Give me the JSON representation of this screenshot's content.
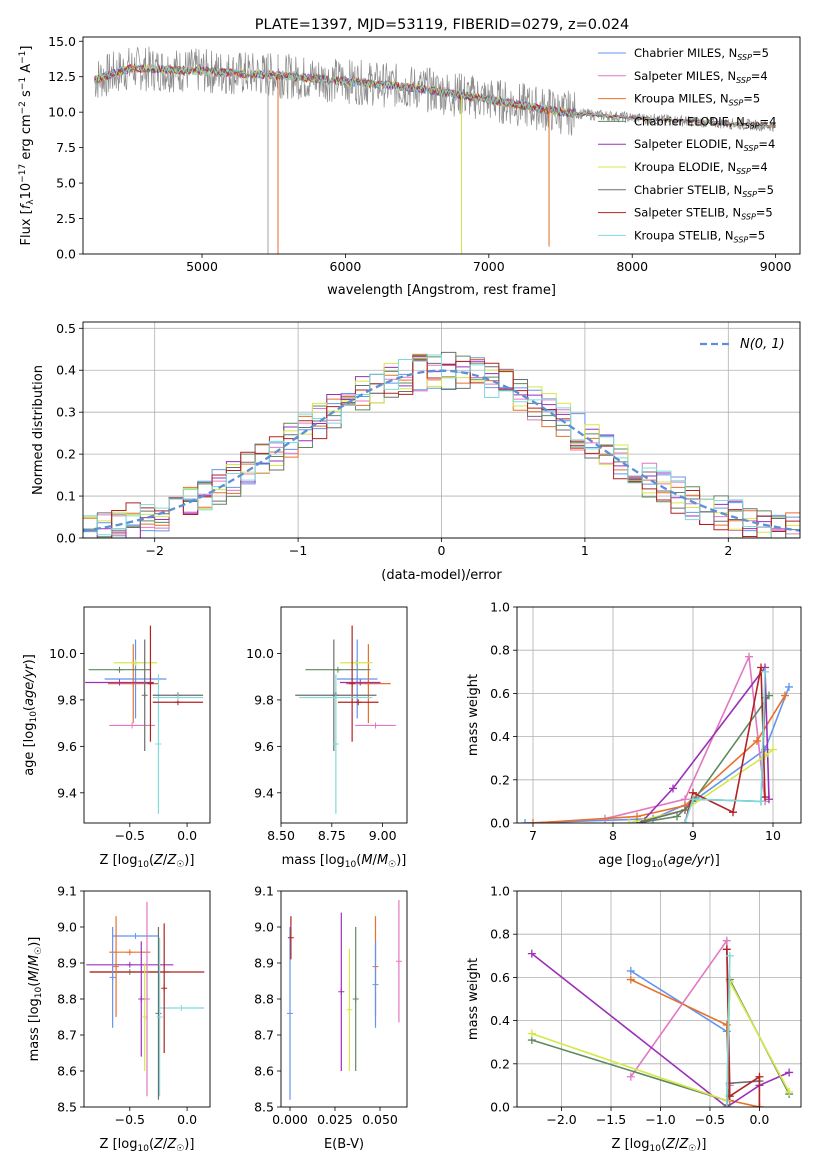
{
  "figure_title": "PLATE=1397, MJD=53119, FIBERID=0279, z=0.024",
  "colors": {
    "C_MILES": "#6495ed",
    "S_MILES": "#e377c2",
    "K_MILES": "#e8702a",
    "C_ELODIE": "#5f8a5f",
    "S_ELODIE": "#9b30b8",
    "K_ELODIE": "#d4e84a",
    "C_STELIB": "#6e6e6e",
    "S_STELIB": "#b22222",
    "K_STELIB": "#7fdbdb",
    "data": "#8c8c8c",
    "grid": "#b0b0b0",
    "gauss": "#5b8fd6"
  },
  "chart_data": [
    {
      "id": "spectrum",
      "type": "line",
      "title": "PLATE=1397, MJD=53119, FIBERID=0279, z=0.024",
      "xlabel": "wavelength [Angstrom, rest frame]",
      "ylabel": "Flux [f_λ 10^-17 erg cm^-2 s^-1 A^-1]",
      "xlim": [
        4170,
        9170
      ],
      "ylim": [
        0,
        15.3
      ],
      "xticks": [
        5000,
        6000,
        7000,
        8000,
        9000
      ],
      "yticks": [
        0.0,
        2.5,
        5.0,
        7.5,
        10.0,
        12.5,
        15.0
      ],
      "grid": false,
      "legend_position": "upper-right",
      "legend": [
        {
          "key": "C_MILES",
          "label": "Chabrier MILES, N",
          "sub": "SSP",
          "n": "=5"
        },
        {
          "key": "S_MILES",
          "label": "Salpeter MILES, N",
          "sub": "SSP",
          "n": "=4"
        },
        {
          "key": "K_MILES",
          "label": "Kroupa MILES, N",
          "sub": "SSP",
          "n": "=5"
        },
        {
          "key": "C_ELODIE",
          "label": "Chabrier ELODIE, N",
          "sub": "SSP",
          "n": "=4"
        },
        {
          "key": "S_ELODIE",
          "label": "Salpeter ELODIE, N",
          "sub": "SSP",
          "n": "=4"
        },
        {
          "key": "K_ELODIE",
          "label": "Kroupa ELODIE, N",
          "sub": "SSP",
          "n": "=4"
        },
        {
          "key": "C_STELIB",
          "label": "Chabrier STELIB, N",
          "sub": "SSP",
          "n": "=5"
        },
        {
          "key": "S_STELIB",
          "label": "Salpeter STELIB, N",
          "sub": "SSP",
          "n": "=5"
        },
        {
          "key": "K_STELIB",
          "label": "Kroupa STELIB, N",
          "sub": "SSP",
          "n": "=5"
        }
      ],
      "continuum": [
        [
          4250,
          12.3
        ],
        [
          4500,
          13.1
        ],
        [
          5000,
          12.9
        ],
        [
          5500,
          12.6
        ],
        [
          6000,
          12.2
        ],
        [
          6500,
          11.7
        ],
        [
          7000,
          10.9
        ],
        [
          7500,
          10.0
        ],
        [
          8000,
          9.6
        ],
        [
          8500,
          9.3
        ],
        [
          9000,
          9.0
        ]
      ],
      "dips": [
        [
          5460,
          0.0
        ],
        [
          5530,
          0.0
        ],
        [
          6810,
          0.0
        ],
        [
          7420,
          0.5
        ]
      ]
    },
    {
      "id": "residuals",
      "type": "histogram",
      "xlabel": "(data-model)/error",
      "ylabel": "Normed distribution",
      "xlim": [
        -2.5,
        2.5
      ],
      "ylim": [
        0,
        0.515
      ],
      "xticks": [
        -2,
        -1,
        0,
        1,
        2
      ],
      "yticks": [
        0.0,
        0.1,
        0.2,
        0.3,
        0.4,
        0.5
      ],
      "grid": true,
      "bin_width": 0.1,
      "gauss_label": "N(0, 1)",
      "legend_position": "upper-right"
    },
    {
      "id": "age_vs_Z",
      "type": "errorbar",
      "xlabel": "Z [log10(Z/Z☉)]",
      "ylabel": "age  [log10(age/yr)]",
      "xlim": [
        -0.9,
        0.2
      ],
      "ylim": [
        9.27,
        10.2
      ],
      "xticks": [
        -0.5,
        0.0
      ],
      "yticks": [
        9.4,
        9.6,
        9.8,
        10.0
      ],
      "points": [
        {
          "key": "C_MILES",
          "x": -0.45,
          "xerr": 0.27,
          "y": 9.89,
          "yerr": 0.17
        },
        {
          "key": "K_MILES",
          "x": -0.47,
          "xerr": 0.22,
          "y": 9.87,
          "yerr": 0.17
        },
        {
          "key": "S_MILES",
          "x": -0.48,
          "xerr": 0.2,
          "y": 9.69,
          "yerr": 0.0
        },
        {
          "key": "C_ELODIE",
          "x": -0.59,
          "xerr": 0.27,
          "y": 9.93,
          "yerr": 0.0
        },
        {
          "key": "S_ELODIE",
          "x": -0.59,
          "xerr": 0.3,
          "y": 9.875,
          "yerr": 0.0
        },
        {
          "key": "K_ELODIE",
          "x": -0.45,
          "xerr": 0.19,
          "y": 9.96,
          "yerr": 0.0
        },
        {
          "key": "C_STELIB",
          "x": -0.37,
          "xerr": 0.0,
          "y": 9.82,
          "yerr": 0.24
        },
        {
          "key": "S_STELIB",
          "x": -0.32,
          "xerr": 0.0,
          "y": 9.87,
          "yerr": 0.25
        },
        {
          "key": "K_STELIB",
          "x": -0.25,
          "xerr": 0.0,
          "y": 9.61,
          "yerr": 0.3
        },
        {
          "key": "C_STELIB",
          "x": -0.08,
          "xerr": 0.22,
          "y": 9.82,
          "yerr": 0.0
        },
        {
          "key": "S_STELIB",
          "x": -0.08,
          "xerr": 0.22,
          "y": 9.79,
          "yerr": 0.0
        },
        {
          "key": "K_STELIB",
          "x": -0.08,
          "xerr": 0.22,
          "y": 9.81,
          "yerr": 0.0
        }
      ]
    },
    {
      "id": "age_vs_mass",
      "type": "errorbar",
      "xlabel": "mass [log10(M/M☉)]",
      "ylabel": "",
      "xlim": [
        8.5,
        9.12
      ],
      "ylim": [
        9.27,
        10.2
      ],
      "xticks": [
        8.5,
        8.75,
        9.0
      ],
      "xtick_labels": [
        "8.50",
        "8.75",
        "9.00"
      ],
      "yticks": [
        9.4,
        9.6,
        9.8,
        10.0
      ],
      "points": [
        {
          "key": "C_MILES",
          "x": 8.875,
          "xerr": 0.1,
          "y": 9.89,
          "yerr": 0.17
        },
        {
          "key": "K_MILES",
          "x": 8.93,
          "xerr": 0.11,
          "y": 9.87,
          "yerr": 0.17
        },
        {
          "key": "S_MILES",
          "x": 8.965,
          "xerr": 0.1,
          "y": 9.69,
          "yerr": 0.0
        },
        {
          "key": "C_ELODIE",
          "x": 8.78,
          "xerr": 0.16,
          "y": 9.93,
          "yerr": 0.0
        },
        {
          "key": "S_ELODIE",
          "x": 8.89,
          "xerr": 0.1,
          "y": 9.875,
          "yerr": 0.0
        },
        {
          "key": "K_ELODIE",
          "x": 8.87,
          "xerr": 0.08,
          "y": 9.96,
          "yerr": 0.0
        },
        {
          "key": "C_STELIB",
          "x": 8.76,
          "xerr": 0.0,
          "y": 9.82,
          "yerr": 0.24
        },
        {
          "key": "S_STELIB",
          "x": 8.85,
          "xerr": 0.0,
          "y": 9.87,
          "yerr": 0.25
        },
        {
          "key": "K_STELIB",
          "x": 8.77,
          "xerr": 0.0,
          "y": 9.61,
          "yerr": 0.3
        },
        {
          "key": "C_STELIB",
          "x": 8.77,
          "xerr": 0.2,
          "y": 9.82,
          "yerr": 0.0
        },
        {
          "key": "S_STELIB",
          "x": 8.88,
          "xerr": 0.1,
          "y": 9.79,
          "yerr": 0.0
        },
        {
          "key": "K_STELIB",
          "x": 8.77,
          "xerr": 0.18,
          "y": 9.81,
          "yerr": 0.0
        }
      ]
    },
    {
      "id": "weight_vs_age",
      "type": "line",
      "xlabel": "age  [log10(age/yr)]",
      "ylabel": "mass weight",
      "xlim": [
        6.8,
        10.35
      ],
      "ylim": [
        0,
        1.0
      ],
      "xticks": [
        7,
        8,
        9,
        10
      ],
      "yticks": [
        0.0,
        0.2,
        0.4,
        0.6,
        0.8,
        1.0
      ],
      "grid": true,
      "series": [
        {
          "key": "C_MILES",
          "x": [
            6.9,
            8.5,
            9.0,
            9.9,
            10.2
          ],
          "y": [
            0.0,
            0.02,
            0.1,
            0.34,
            0.63
          ]
        },
        {
          "key": "S_MILES",
          "x": [
            7.9,
            8.9,
            9.7,
            9.9
          ],
          "y": [
            0.02,
            0.11,
            0.77,
            0.1
          ]
        },
        {
          "key": "K_MILES",
          "x": [
            7.0,
            8.3,
            8.9,
            9.8,
            10.15
          ],
          "y": [
            0.0,
            0.03,
            0.08,
            0.38,
            0.59
          ]
        },
        {
          "key": "C_ELODIE",
          "x": [
            8.3,
            8.8,
            9.0,
            9.95
          ],
          "y": [
            0.0,
            0.03,
            0.1,
            0.59
          ]
        },
        {
          "key": "S_ELODIE",
          "x": [
            8.35,
            8.75,
            9.9,
            9.95
          ],
          "y": [
            0.0,
            0.16,
            0.72,
            0.11
          ]
        },
        {
          "key": "K_ELODIE",
          "x": [
            8.2,
            8.9,
            9.9,
            10.0
          ],
          "y": [
            0.0,
            0.06,
            0.31,
            0.34
          ]
        },
        {
          "key": "C_STELIB",
          "x": [
            8.4,
            8.9,
            9.0,
            9.85,
            9.9
          ],
          "y": [
            0.01,
            0.06,
            0.11,
            0.1,
            0.58
          ]
        },
        {
          "key": "S_STELIB",
          "x": [
            8.9,
            9.0,
            9.5,
            9.85,
            9.9
          ],
          "y": [
            0.0,
            0.14,
            0.05,
            0.72,
            0.12
          ]
        },
        {
          "key": "K_STELIB",
          "x": [
            8.9,
            9.0,
            9.85,
            9.9
          ],
          "y": [
            0.0,
            0.11,
            0.1,
            0.7
          ]
        }
      ]
    },
    {
      "id": "mass_vs_Z",
      "type": "errorbar",
      "xlabel": "Z [log10(Z/Z☉)]",
      "ylabel": "mass [log10(M/M☉)]",
      "xlim": [
        -0.9,
        0.2
      ],
      "ylim": [
        8.5,
        9.1
      ],
      "xticks": [
        -0.5,
        0.0
      ],
      "yticks": [
        8.5,
        8.6,
        8.7,
        8.8,
        8.9,
        9.0,
        9.1
      ],
      "points": [
        {
          "key": "C_MILES",
          "x": -0.45,
          "xerr": 0.2,
          "y": 8.975,
          "yerr": 0.0
        },
        {
          "key": "K_MILES",
          "x": -0.5,
          "xerr": 0.18,
          "y": 8.93,
          "yerr": 0.0
        },
        {
          "key": "C_ELODIE",
          "x": -0.5,
          "xerr": 0.35,
          "y": 8.875,
          "yerr": 0.0
        },
        {
          "key": "S_ELODIE",
          "x": -0.5,
          "xerr": 0.38,
          "y": 8.895,
          "yerr": 0.0
        },
        {
          "key": "S_STELIB",
          "x": -0.35,
          "xerr": 0.5,
          "y": 8.875,
          "yerr": 0.0
        },
        {
          "key": "K_STELIB",
          "x": -0.05,
          "xerr": 0.2,
          "y": 8.775,
          "yerr": 0.0
        },
        {
          "key": "C_MILES",
          "x": -0.65,
          "xerr": 0.0,
          "y": 8.86,
          "yerr": 0.14
        },
        {
          "key": "K_MILES",
          "x": -0.62,
          "xerr": 0.0,
          "y": 8.89,
          "yerr": 0.14
        },
        {
          "key": "S_ELODIE",
          "x": -0.4,
          "xerr": 0.0,
          "y": 8.8,
          "yerr": 0.16
        },
        {
          "key": "K_ELODIE",
          "x": -0.37,
          "xerr": 0.0,
          "y": 8.75,
          "yerr": 0.15
        },
        {
          "key": "S_MILES",
          "x": -0.35,
          "xerr": 0.0,
          "y": 8.8,
          "yerr": 0.27
        },
        {
          "key": "C_STELIB",
          "x": -0.25,
          "xerr": 0.0,
          "y": 8.76,
          "yerr": 0.24
        },
        {
          "key": "K_STELIB",
          "x": -0.24,
          "xerr": 0.0,
          "y": 8.75,
          "yerr": 0.22
        },
        {
          "key": "S_STELIB",
          "x": -0.2,
          "xerr": 0.0,
          "y": 8.83,
          "yerr": 0.18
        }
      ]
    },
    {
      "id": "mass_vs_ebv",
      "type": "errorbar",
      "xlabel": "E(B-V)",
      "ylabel": "",
      "xlim": [
        -0.005,
        0.065
      ],
      "ylim": [
        8.5,
        9.1
      ],
      "xticks": [
        0.0,
        0.025,
        0.05
      ],
      "xtick_labels": [
        "0.000",
        "0.025",
        "0.050"
      ],
      "yticks": [
        8.5,
        8.6,
        8.7,
        8.8,
        8.9,
        9.0,
        9.1
      ],
      "points": [
        {
          "key": "C_MILES",
          "x": 0.0,
          "xerr": 0.0,
          "y": 8.76,
          "yerr": 0.24
        },
        {
          "key": "S_STELIB",
          "x": 0.0005,
          "xerr": 0.0,
          "y": 8.97,
          "yerr": 0.06
        },
        {
          "key": "S_ELODIE",
          "x": 0.0285,
          "xerr": 0.0,
          "y": 8.82,
          "yerr": 0.22
        },
        {
          "key": "K_ELODIE",
          "x": 0.033,
          "xerr": 0.0,
          "y": 8.77,
          "yerr": 0.17
        },
        {
          "key": "C_ELODIE",
          "x": 0.0365,
          "xerr": 0.0,
          "y": 8.8,
          "yerr": 0.2
        },
        {
          "key": "K_MILES",
          "x": 0.0475,
          "xerr": 0.0,
          "y": 8.89,
          "yerr": 0.14
        },
        {
          "key": "C_MILES",
          "x": 0.0475,
          "xerr": 0.0,
          "y": 8.84,
          "yerr": 0.12
        },
        {
          "key": "S_MILES",
          "x": 0.0605,
          "xerr": 0.0,
          "y": 8.905,
          "yerr": 0.17
        }
      ]
    },
    {
      "id": "weight_vs_Z",
      "type": "line",
      "xlabel": "Z [log10(Z/Z☉)]",
      "ylabel": "mass weight",
      "xlim": [
        -2.45,
        0.42
      ],
      "ylim": [
        0,
        1.0
      ],
      "xticks": [
        -2.0,
        -1.5,
        -1.0,
        -0.5,
        0.0
      ],
      "yticks": [
        0.0,
        0.2,
        0.4,
        0.6,
        0.8,
        1.0
      ],
      "grid": true,
      "series": [
        {
          "key": "C_MILES",
          "x": [
            -1.3,
            -0.33,
            -0.3
          ],
          "y": [
            0.63,
            0.35,
            0.0
          ]
        },
        {
          "key": "K_MILES",
          "x": [
            -1.3,
            -0.33,
            -0.3,
            0.0
          ],
          "y": [
            0.59,
            0.38,
            0.03,
            0.0
          ]
        },
        {
          "key": "S_MILES",
          "x": [
            -1.3,
            -0.33,
            -0.3
          ],
          "y": [
            0.14,
            0.77,
            0.1
          ]
        },
        {
          "key": "S_ELODIE",
          "x": [
            -2.3,
            -0.33,
            0.0,
            0.3
          ],
          "y": [
            0.71,
            0.0,
            0.1,
            0.16
          ]
        },
        {
          "key": "C_ELODIE",
          "x": [
            -2.3,
            -0.33,
            -0.3,
            0.3
          ],
          "y": [
            0.31,
            0.03,
            0.59,
            0.06
          ]
        },
        {
          "key": "K_ELODIE",
          "x": [
            -2.3,
            -0.33,
            -0.3,
            0.3
          ],
          "y": [
            0.34,
            0.03,
            0.58,
            0.07
          ]
        },
        {
          "key": "C_STELIB",
          "x": [
            -0.33,
            -0.3,
            0.0
          ],
          "y": [
            0.01,
            0.11,
            0.12
          ]
        },
        {
          "key": "S_STELIB",
          "x": [
            -0.33,
            -0.3,
            0.0,
            0.0
          ],
          "y": [
            0.73,
            0.05,
            0.14,
            0.0
          ]
        },
        {
          "key": "K_STELIB",
          "x": [
            -0.33,
            -0.3
          ],
          "y": [
            0.0,
            0.7
          ]
        }
      ]
    }
  ]
}
